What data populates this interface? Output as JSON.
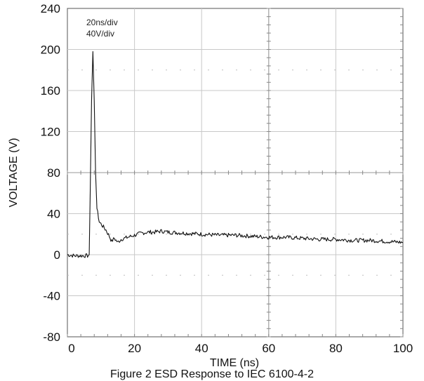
{
  "chart_data": {
    "type": "line",
    "title": "",
    "xlabel": "TIME (ns)",
    "ylabel": "VOLTAGE (V)",
    "xlim": [
      0,
      100
    ],
    "ylim": [
      -80,
      240
    ],
    "xticks": [
      0,
      20,
      40,
      60,
      80,
      100
    ],
    "yticks": [
      -80,
      -40,
      0,
      40,
      80,
      120,
      160,
      200,
      240
    ],
    "grid": true,
    "annotations": [
      "20ns/div",
      "40V/div"
    ],
    "series": [
      {
        "name": "",
        "color": "#111111",
        "points": [
          [
            0,
            0
          ],
          [
            2,
            -1
          ],
          [
            4,
            -1
          ],
          [
            6,
            -1
          ],
          [
            6.5,
            0
          ],
          [
            6.8,
            60
          ],
          [
            7.2,
            150
          ],
          [
            7.6,
            198
          ],
          [
            8.0,
            150
          ],
          [
            8.4,
            80
          ],
          [
            8.8,
            45
          ],
          [
            9.5,
            32
          ],
          [
            10.5,
            28
          ],
          [
            11.5,
            24
          ],
          [
            12.5,
            18
          ],
          [
            13.2,
            13
          ],
          [
            14,
            16
          ],
          [
            15,
            12
          ],
          [
            16,
            15
          ],
          [
            18,
            17
          ],
          [
            20,
            19
          ],
          [
            22,
            21
          ],
          [
            24,
            22
          ],
          [
            26,
            22
          ],
          [
            28,
            23
          ],
          [
            30,
            22
          ],
          [
            35,
            21
          ],
          [
            40,
            20
          ],
          [
            45,
            19
          ],
          [
            50,
            19
          ],
          [
            55,
            18
          ],
          [
            60,
            17
          ],
          [
            65,
            17
          ],
          [
            70,
            16
          ],
          [
            75,
            15
          ],
          [
            80,
            15
          ],
          [
            85,
            14
          ],
          [
            90,
            14
          ],
          [
            95,
            13
          ],
          [
            100,
            12
          ]
        ]
      }
    ]
  },
  "caption": "Figure 2 ESD Response to IEC 6100-4-2"
}
